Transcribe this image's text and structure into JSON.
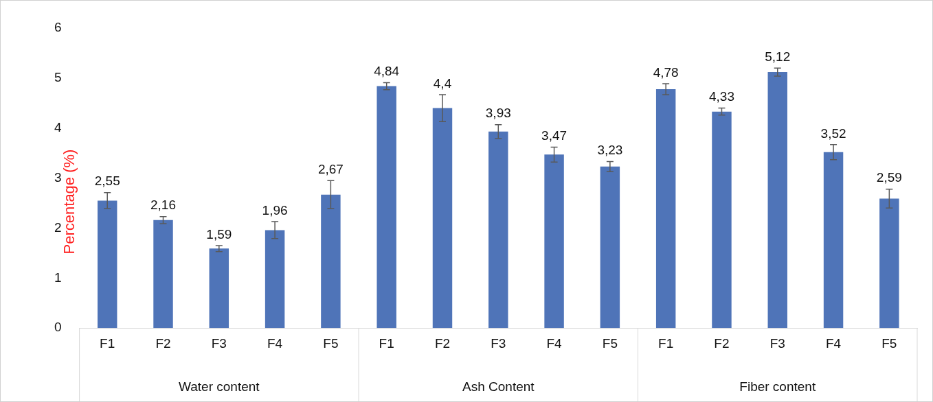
{
  "chart_data": {
    "type": "bar",
    "ylabel": "Percentage (%)",
    "categories": [
      "F1",
      "F2",
      "F3",
      "F4",
      "F5",
      "F1",
      "F2",
      "F3",
      "F4",
      "F5",
      "F1",
      "F2",
      "F3",
      "F4",
      "F5"
    ],
    "values": [
      2.55,
      2.16,
      1.59,
      1.96,
      2.67,
      4.84,
      4.4,
      3.93,
      3.47,
      3.23,
      4.78,
      4.33,
      5.12,
      3.52,
      2.59
    ],
    "errors": [
      0.16,
      0.07,
      0.06,
      0.17,
      0.28,
      0.07,
      0.27,
      0.14,
      0.15,
      0.1,
      0.11,
      0.07,
      0.08,
      0.15,
      0.19
    ],
    "value_labels": [
      "2,55",
      "2,16",
      "1,59",
      "1,96",
      "2,67",
      "4,84",
      "4,4",
      "3,93",
      "3,47",
      "3,23",
      "4,78",
      "4,33",
      "5,12",
      "3,52",
      "2,59"
    ],
    "color": "#4f74b8",
    "ylim": [
      0,
      6
    ],
    "yticks": [
      0,
      1,
      2,
      3,
      4,
      5,
      6
    ],
    "grid": false,
    "legend": false,
    "annotations": [
      "Water content",
      "Ash Content",
      "Fiber content"
    ]
  }
}
